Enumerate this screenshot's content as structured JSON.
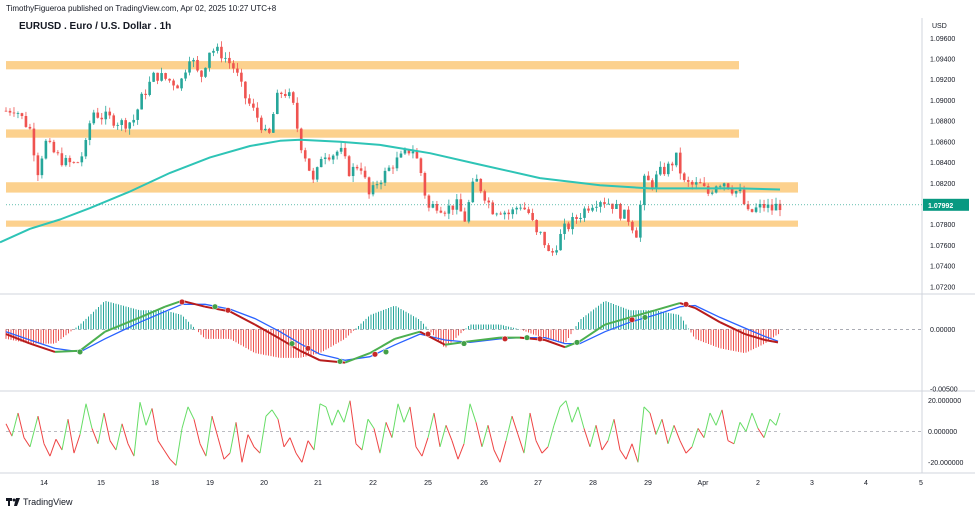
{
  "header": {
    "published_by": "TimothyFigueroa published on TradingView.com, Apr 02, 2025 10:27 UTC+8",
    "symbol": "EURUSD . Euro / U.S. Dollar . 1h",
    "currency": "USD",
    "brand": "TradingView"
  },
  "colors": {
    "up": "#26a69a",
    "down": "#ef5350",
    "zone": "#fcc97a",
    "ma": "#2ec4b6",
    "price_tag": "#089981",
    "osc_green": "#4caf50",
    "osc_blue": "#2962ff",
    "osc_red": "#b71c1c",
    "rsi_green": "#66dd66",
    "rsi_red": "#ee4444"
  },
  "chart_data": [
    {
      "type": "candlestick",
      "title": "EURUSD . Euro / U.S. Dollar . 1h",
      "x_ticks": [
        "14",
        "15",
        "17",
        "18",
        "19",
        "20",
        "21",
        "22",
        "25",
        "26",
        "27",
        "28",
        "29",
        "Apr",
        "2",
        "3",
        "4",
        "5"
      ],
      "y_ticks": [
        "1.09600",
        "1.09400",
        "1.09200",
        "1.09000",
        "1.08800",
        "1.08600",
        "1.08400",
        "1.08200",
        "1.08000",
        "1.07800",
        "1.07600",
        "1.07400",
        "1.07200"
      ],
      "ylim": [
        1.0715,
        1.0968
      ],
      "last_price": "1.07992",
      "zones": [
        [
          1.093,
          1.0938
        ],
        [
          1.0864,
          1.0872
        ],
        [
          1.0811,
          1.0821
        ],
        [
          1.0778,
          1.0784
        ]
      ],
      "moving_average": [
        [
          0,
          1.0763
        ],
        [
          30,
          1.0776
        ],
        [
          60,
          1.0785
        ],
        [
          90,
          1.0796
        ],
        [
          130,
          1.0812
        ],
        [
          170,
          1.083
        ],
        [
          210,
          1.0845
        ],
        [
          250,
          1.0856
        ],
        [
          280,
          1.0861
        ],
        [
          300,
          1.0862
        ],
        [
          340,
          1.086
        ],
        [
          380,
          1.0857
        ],
        [
          430,
          1.0849
        ],
        [
          480,
          1.0838
        ],
        [
          540,
          1.0825
        ],
        [
          600,
          1.0818
        ],
        [
          650,
          1.0815
        ],
        [
          700,
          1.0815
        ],
        [
          740,
          1.0815
        ],
        [
          780,
          1.0814
        ]
      ],
      "close_path": [
        [
          6,
          1.089
        ],
        [
          15,
          1.0893
        ],
        [
          22,
          1.0883
        ],
        [
          30,
          1.0872
        ],
        [
          38,
          1.0832
        ],
        [
          45,
          1.086
        ],
        [
          55,
          1.0848
        ],
        [
          65,
          1.084
        ],
        [
          76,
          1.0838
        ],
        [
          85,
          1.0852
        ],
        [
          92,
          1.089
        ],
        [
          100,
          1.0885
        ],
        [
          112,
          1.0882
        ],
        [
          122,
          1.0878
        ],
        [
          133,
          1.088
        ],
        [
          143,
          1.0905
        ],
        [
          155,
          1.0925
        ],
        [
          168,
          1.092
        ],
        [
          180,
          1.0915
        ],
        [
          190,
          1.0945
        ],
        [
          200,
          1.092
        ],
        [
          210,
          1.095
        ],
        [
          222,
          1.0945
        ],
        [
          235,
          1.093
        ],
        [
          244,
          1.0905
        ],
        [
          252,
          1.0892
        ],
        [
          260,
          1.088
        ],
        [
          268,
          1.086
        ],
        [
          276,
          1.09
        ],
        [
          283,
          1.091
        ],
        [
          292,
          1.09
        ],
        [
          300,
          1.086
        ],
        [
          306,
          1.0845
        ],
        [
          314,
          1.0818
        ],
        [
          322,
          1.085
        ],
        [
          332,
          1.0848
        ],
        [
          340,
          1.0852
        ],
        [
          350,
          1.083
        ],
        [
          360,
          1.084
        ],
        [
          370,
          1.0805
        ],
        [
          376,
          1.082
        ],
        [
          386,
          1.083
        ],
        [
          394,
          1.084
        ],
        [
          402,
          1.0845
        ],
        [
          412,
          1.0855
        ],
        [
          420,
          1.0835
        ],
        [
          428,
          1.0795
        ],
        [
          436,
          1.08
        ],
        [
          446,
          1.0795
        ],
        [
          456,
          1.08
        ],
        [
          465,
          1.0785
        ],
        [
          475,
          1.0825
        ],
        [
          484,
          1.081
        ],
        [
          492,
          1.0795
        ],
        [
          500,
          1.0795
        ],
        [
          510,
          1.079
        ],
        [
          520,
          1.08
        ],
        [
          530,
          1.079
        ],
        [
          536,
          1.077
        ],
        [
          542,
          1.077
        ],
        [
          550,
          1.0748
        ],
        [
          557,
          1.0762
        ],
        [
          564,
          1.0775
        ],
        [
          572,
          1.0782
        ],
        [
          580,
          1.079
        ],
        [
          590,
          1.08
        ],
        [
          600,
          1.0805
        ],
        [
          612,
          1.08
        ],
        [
          622,
          1.079
        ],
        [
          630,
          1.0785
        ],
        [
          636,
          1.077
        ],
        [
          644,
          1.0822
        ],
        [
          652,
          1.082
        ],
        [
          660,
          1.083
        ],
        [
          668,
          1.0835
        ],
        [
          676,
          1.0845
        ],
        [
          684,
          1.082
        ],
        [
          692,
          1.0818
        ],
        [
          700,
          1.0818
        ],
        [
          708,
          1.081
        ],
        [
          716,
          1.082
        ],
        [
          724,
          1.0822
        ],
        [
          732,
          1.0815
        ],
        [
          740,
          1.081
        ],
        [
          748,
          1.079
        ],
        [
          756,
          1.0795
        ],
        [
          764,
          1.0798
        ],
        [
          772,
          1.0795
        ],
        [
          778,
          1.0799
        ]
      ],
      "candle_count": 195
    },
    {
      "type": "line",
      "y_ticks": [
        "0.00000",
        "-0.00500"
      ],
      "ylim": [
        -0.0051,
        0.0028
      ],
      "series": [
        {
          "color": "#4caf50",
          "values": [
            [
              6,
              -0.0004
            ],
            [
              30,
              -0.0012
            ],
            [
              55,
              -0.0019
            ],
            [
              80,
              -0.0018
            ],
            [
              105,
              -0.0002
            ],
            [
              140,
              0.001
            ],
            [
              165,
              0.0019
            ],
            [
              182,
              0.0024
            ],
            [
              205,
              0.0019
            ],
            [
              230,
              0.0015
            ],
            [
              255,
              0.0004
            ],
            [
              280,
              -0.0008
            ],
            [
              300,
              -0.0018
            ],
            [
              320,
              -0.0026
            ],
            [
              345,
              -0.0028
            ],
            [
              370,
              -0.002
            ],
            [
              395,
              -0.0008
            ],
            [
              420,
              -0.0002
            ],
            [
              445,
              -0.0013
            ],
            [
              470,
              -0.001
            ],
            [
              500,
              -0.0007
            ],
            [
              520,
              -0.0007
            ],
            [
              545,
              -0.0009
            ],
            [
              565,
              -0.0015
            ],
            [
              580,
              -0.001
            ],
            [
              605,
              0.0004
            ],
            [
              630,
              0.001
            ],
            [
              655,
              0.0016
            ],
            [
              680,
              0.0022
            ],
            [
              695,
              0.0018
            ],
            [
              720,
              0.0006
            ],
            [
              745,
              -0.0004
            ],
            [
              765,
              -0.0009
            ],
            [
              778,
              -0.0011
            ]
          ]
        },
        {
          "color": "#2962ff",
          "values": [
            [
              6,
              -0.0002
            ],
            [
              30,
              -0.0009
            ],
            [
              55,
              -0.0016
            ],
            [
              80,
              -0.0019
            ],
            [
              105,
              -0.0008
            ],
            [
              140,
              0.0006
            ],
            [
              165,
              0.0015
            ],
            [
              182,
              0.0021
            ],
            [
              205,
              0.0021
            ],
            [
              230,
              0.0017
            ],
            [
              255,
              0.0009
            ],
            [
              280,
              -0.0002
            ],
            [
              300,
              -0.0012
            ],
            [
              320,
              -0.0021
            ],
            [
              345,
              -0.0026
            ],
            [
              370,
              -0.0023
            ],
            [
              395,
              -0.0013
            ],
            [
              420,
              -0.0004
            ],
            [
              445,
              -0.0009
            ],
            [
              470,
              -0.0011
            ],
            [
              500,
              -0.0008
            ],
            [
              520,
              -0.0007
            ],
            [
              545,
              -0.0007
            ],
            [
              565,
              -0.0012
            ],
            [
              580,
              -0.0012
            ],
            [
              605,
              -0.0002
            ],
            [
              630,
              0.0006
            ],
            [
              655,
              0.0012
            ],
            [
              680,
              0.0019
            ],
            [
              695,
              0.002
            ],
            [
              720,
              0.001
            ],
            [
              745,
              0.0001
            ],
            [
              765,
              -0.0006
            ],
            [
              778,
              -0.001
            ]
          ]
        }
      ],
      "cross_dots": [
        [
          80,
          -0.0019
        ],
        [
          182,
          0.0023
        ],
        [
          215,
          0.0019
        ],
        [
          228,
          0.0016
        ],
        [
          292,
          -0.0012
        ],
        [
          308,
          -0.0016
        ],
        [
          340,
          -0.0027
        ],
        [
          375,
          -0.0021
        ],
        [
          386,
          -0.0019
        ],
        [
          428,
          -0.0004
        ],
        [
          464,
          -0.0012
        ],
        [
          505,
          -0.0008
        ],
        [
          527,
          -0.0007
        ],
        [
          540,
          -0.0008
        ],
        [
          577,
          -0.0011
        ],
        [
          632,
          0.0008
        ],
        [
          645,
          0.001
        ],
        [
          686,
          0.0021
        ]
      ]
    },
    {
      "type": "line",
      "y_ticks": [
        "20.000000",
        "0.000000",
        "-20.000000"
      ],
      "ylim": [
        -25,
        25
      ],
      "values": [
        [
          6,
          5
        ],
        [
          12,
          -3
        ],
        [
          18,
          12
        ],
        [
          24,
          -4
        ],
        [
          30,
          -10
        ],
        [
          38,
          10
        ],
        [
          44,
          -8
        ],
        [
          50,
          -16
        ],
        [
          56,
          -5
        ],
        [
          62,
          -12
        ],
        [
          68,
          8
        ],
        [
          74,
          -14
        ],
        [
          80,
          -2
        ],
        [
          86,
          18
        ],
        [
          92,
          2
        ],
        [
          98,
          -8
        ],
        [
          104,
          12
        ],
        [
          110,
          -6
        ],
        [
          116,
          -12
        ],
        [
          122,
          5
        ],
        [
          128,
          -8
        ],
        [
          134,
          -16
        ],
        [
          140,
          19
        ],
        [
          146,
          4
        ],
        [
          152,
          15
        ],
        [
          158,
          -6
        ],
        [
          164,
          -12
        ],
        [
          170,
          -18
        ],
        [
          176,
          -22
        ],
        [
          182,
          2
        ],
        [
          188,
          16
        ],
        [
          194,
          8
        ],
        [
          200,
          -8
        ],
        [
          206,
          -16
        ],
        [
          212,
          10
        ],
        [
          218,
          -4
        ],
        [
          224,
          -18
        ],
        [
          230,
          -14
        ],
        [
          236,
          6
        ],
        [
          242,
          -20
        ],
        [
          248,
          -2
        ],
        [
          254,
          -10
        ],
        [
          260,
          -14
        ],
        [
          266,
          10
        ],
        [
          272,
          14
        ],
        [
          278,
          8
        ],
        [
          284,
          -10
        ],
        [
          290,
          -4
        ],
        [
          296,
          -14
        ],
        [
          302,
          -20
        ],
        [
          308,
          -6
        ],
        [
          314,
          -12
        ],
        [
          320,
          18
        ],
        [
          326,
          16
        ],
        [
          332,
          4
        ],
        [
          338,
          14
        ],
        [
          344,
          6
        ],
        [
          350,
          20
        ],
        [
          356,
          -8
        ],
        [
          362,
          -12
        ],
        [
          368,
          8
        ],
        [
          374,
          2
        ],
        [
          380,
          -14
        ],
        [
          386,
          6
        ],
        [
          392,
          -4
        ],
        [
          398,
          18
        ],
        [
          404,
          6
        ],
        [
          410,
          16
        ],
        [
          416,
          -10
        ],
        [
          422,
          -16
        ],
        [
          428,
          -4
        ],
        [
          434,
          12
        ],
        [
          440,
          -10
        ],
        [
          446,
          4
        ],
        [
          452,
          -6
        ],
        [
          458,
          -18
        ],
        [
          464,
          -8
        ],
        [
          470,
          18
        ],
        [
          476,
          6
        ],
        [
          482,
          -10
        ],
        [
          488,
          4
        ],
        [
          494,
          -12
        ],
        [
          500,
          -20
        ],
        [
          506,
          -6
        ],
        [
          512,
          10
        ],
        [
          518,
          -2
        ],
        [
          524,
          -14
        ],
        [
          530,
          12
        ],
        [
          536,
          -6
        ],
        [
          542,
          -14
        ],
        [
          548,
          -10
        ],
        [
          554,
          4
        ],
        [
          560,
          16
        ],
        [
          566,
          20
        ],
        [
          572,
          6
        ],
        [
          578,
          16
        ],
        [
          584,
          2
        ],
        [
          590,
          -10
        ],
        [
          596,
          4
        ],
        [
          602,
          -12
        ],
        [
          608,
          -6
        ],
        [
          614,
          8
        ],
        [
          620,
          -12
        ],
        [
          626,
          -18
        ],
        [
          632,
          -8
        ],
        [
          638,
          -20
        ],
        [
          644,
          16
        ],
        [
          650,
          12
        ],
        [
          656,
          -2
        ],
        [
          662,
          8
        ],
        [
          668,
          -8
        ],
        [
          674,
          4
        ],
        [
          680,
          -6
        ],
        [
          686,
          -14
        ],
        [
          692,
          -10
        ],
        [
          698,
          2
        ],
        [
          704,
          -4
        ],
        [
          710,
          12
        ],
        [
          716,
          4
        ],
        [
          722,
          14
        ],
        [
          728,
          -6
        ],
        [
          734,
          -8
        ],
        [
          740,
          6
        ],
        [
          746,
          0
        ],
        [
          752,
          12
        ],
        [
          758,
          2
        ],
        [
          764,
          -4
        ],
        [
          770,
          8
        ],
        [
          776,
          4
        ],
        [
          780,
          12
        ]
      ]
    }
  ]
}
